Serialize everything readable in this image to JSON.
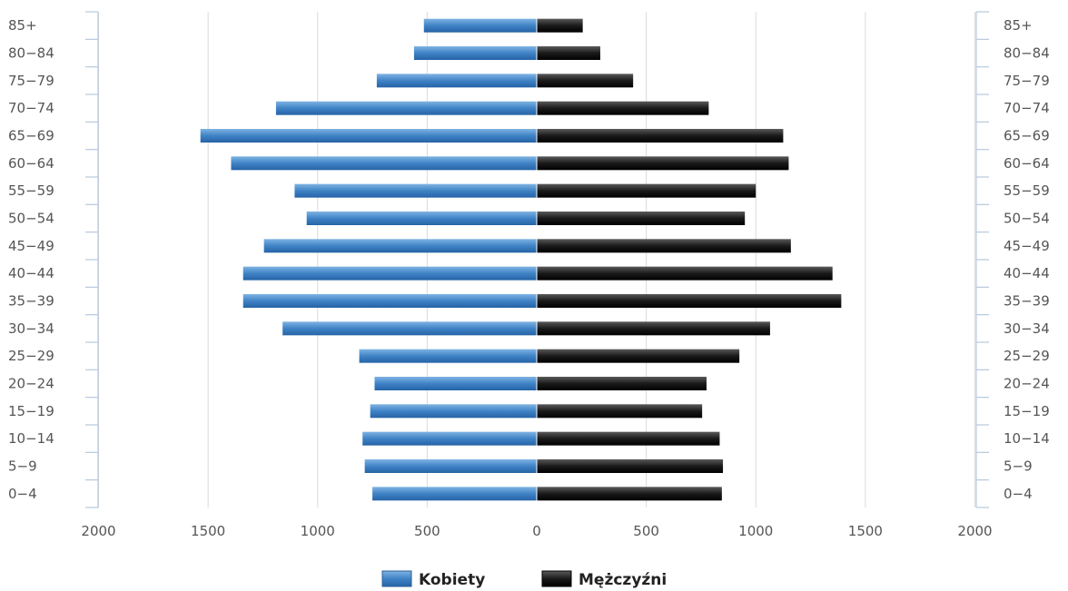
{
  "chart_data": {
    "type": "bar",
    "orientation": "horizontal",
    "layout": "population-pyramid",
    "categories": [
      "0-4",
      "5-9",
      "10-14",
      "15-19",
      "20-24",
      "25-29",
      "30-34",
      "35-39",
      "40-44",
      "45-49",
      "50-54",
      "55-59",
      "60-64",
      "65-69",
      "70-74",
      "75-79",
      "80-84",
      "85+"
    ],
    "series": [
      {
        "name": "Kobiety",
        "side": "left",
        "color": "#3a7fc1",
        "values": [
          750,
          785,
          795,
          760,
          740,
          810,
          1160,
          1340,
          1340,
          1245,
          1050,
          1105,
          1395,
          1535,
          1190,
          730,
          560,
          515
        ]
      },
      {
        "name": "Mężczyźni",
        "side": "right",
        "color": "#1c1c1c",
        "values": [
          845,
          850,
          835,
          755,
          775,
          925,
          1065,
          1390,
          1350,
          1160,
          950,
          1000,
          1150,
          1125,
          785,
          440,
          290,
          210
        ]
      }
    ],
    "xlim": [
      -2000,
      2000
    ],
    "xticks": [
      {
        "value": -2000,
        "label": "2000"
      },
      {
        "value": -1500,
        "label": "1500"
      },
      {
        "value": -1000,
        "label": "1000"
      },
      {
        "value": -500,
        "label": "500"
      },
      {
        "value": 0,
        "label": "0"
      },
      {
        "value": 500,
        "label": "500"
      },
      {
        "value": 1000,
        "label": "1000"
      },
      {
        "value": 1500,
        "label": "1500"
      },
      {
        "value": 2000,
        "label": "2000"
      }
    ],
    "category_labels": [
      "0−4",
      "5−9",
      "10−14",
      "15−19",
      "20−24",
      "25−29",
      "30−34",
      "35−39",
      "40−44",
      "45−49",
      "50−54",
      "55−59",
      "60−64",
      "65−69",
      "70−74",
      "75−79",
      "80−84",
      "85+"
    ],
    "grid": true,
    "legend": {
      "position": "bottom",
      "items": [
        "Kobiety",
        "Mężczyźni"
      ]
    },
    "title": "",
    "xlabel": "",
    "ylabel": ""
  }
}
